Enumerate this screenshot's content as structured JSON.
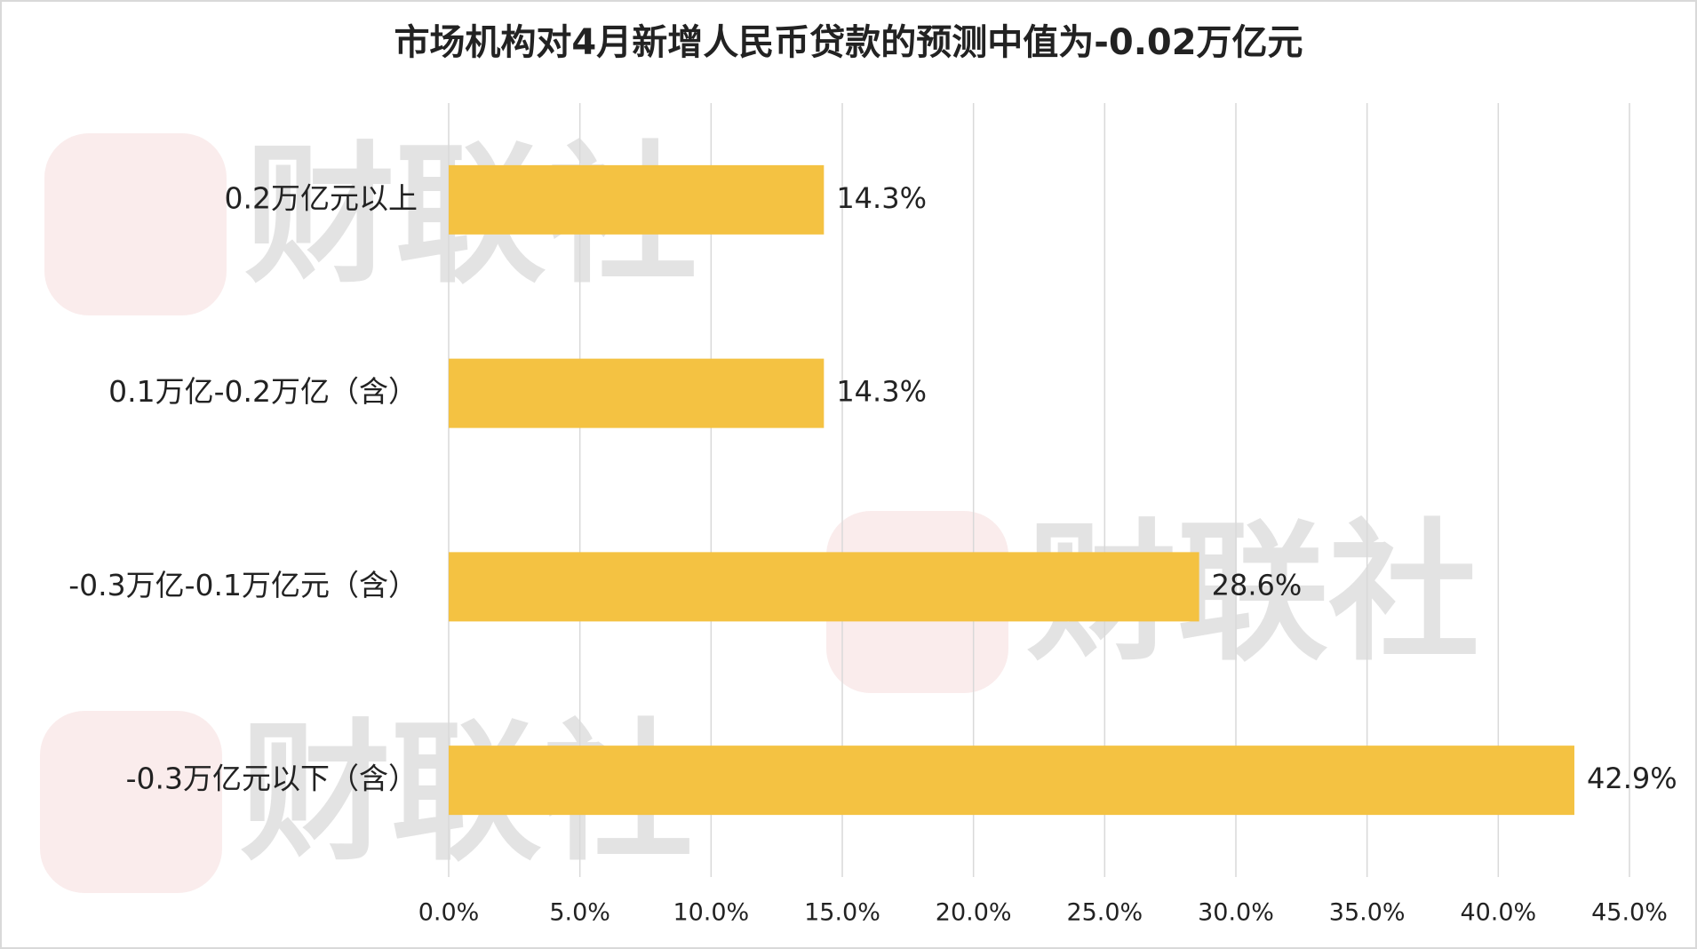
{
  "chart_data": {
    "type": "barh",
    "title": "市场机构对4月新增人民币贷款的预测中值为-0.02万亿元",
    "watermark": "财联社",
    "categories": [
      "0.2万亿元以上",
      "0.1万亿-0.2万亿（含）",
      "-0.3万亿-0.1万亿元（含）",
      "-0.3万亿元以下（含）"
    ],
    "values": [
      14.3,
      14.3,
      28.6,
      42.9
    ],
    "value_labels": [
      "14.3%",
      "14.3%",
      "28.6%",
      "42.9%"
    ],
    "color": "#F4C242",
    "xlim": [
      0,
      45
    ],
    "xticks": [
      {
        "value": 0,
        "label": "0.0%"
      },
      {
        "value": 5,
        "label": "5.0%"
      },
      {
        "value": 10,
        "label": "10.0%"
      },
      {
        "value": 15,
        "label": "15.0%"
      },
      {
        "value": 20,
        "label": "20.0%"
      },
      {
        "value": 25,
        "label": "25.0%"
      },
      {
        "value": 30,
        "label": "30.0%"
      },
      {
        "value": 35,
        "label": "35.0%"
      },
      {
        "value": 40,
        "label": "40.0%"
      },
      {
        "value": 45,
        "label": "45.0%"
      }
    ],
    "grid": true
  }
}
